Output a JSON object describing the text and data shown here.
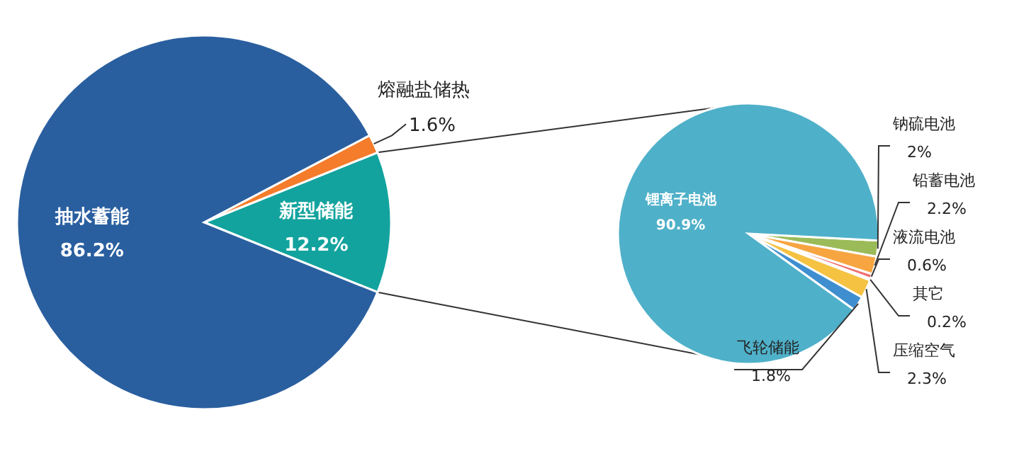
{
  "chart_data": [
    {
      "type": "pie",
      "categories": [
        "新型储能",
        "熔融盐储热",
        "抽水蓄能"
      ],
      "values": [
        12.2,
        1.6,
        86.2
      ],
      "colors": [
        "#13a39e",
        "#f47c2a",
        "#2a5f9f"
      ],
      "value_labels": [
        "12.2%",
        "1.6%",
        "86.2%"
      ],
      "legend": false
    },
    {
      "type": "pie",
      "categories": [
        "钠硫电池",
        "铅蓄电池",
        "液流电池",
        "其它",
        "压缩空气",
        "飞轮储能",
        "锂离子电池"
      ],
      "values": [
        2,
        2.2,
        0.6,
        0.2,
        2.3,
        1.8,
        90.9
      ],
      "colors": [
        "#9bbb59",
        "#f7a541",
        "#f07070",
        "#d9d9d9",
        "#f5c242",
        "#3f8fd0",
        "#4fb0c9"
      ],
      "value_labels": [
        "2%",
        "2.2%",
        "0.6%",
        "0.2%",
        "2.3%",
        "1.8%",
        "90.9%"
      ],
      "legend": false
    }
  ]
}
